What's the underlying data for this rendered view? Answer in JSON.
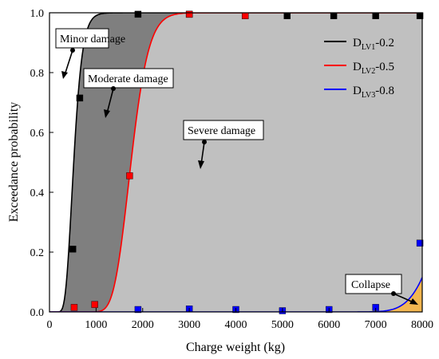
{
  "chart_data": {
    "type": "line",
    "xlabel": "Charge weight (kg)",
    "ylabel": "Exceedance probability",
    "xlim": [
      0,
      8000
    ],
    "ylim": [
      0,
      1.0
    ],
    "x_ticks": [
      0,
      1000,
      2000,
      3000,
      4000,
      5000,
      6000,
      7000,
      8000
    ],
    "x_tick_labels": [
      "0",
      "1000",
      "2000",
      "3000",
      "4000",
      "5000",
      "6000",
      "7000",
      "8000"
    ],
    "y_ticks": [
      0.0,
      0.2,
      0.4,
      0.6,
      0.8,
      1.0
    ],
    "y_tick_labels": [
      "0.0",
      "0.2",
      "0.4",
      "0.6",
      "0.8",
      "1.0"
    ],
    "legend_position": "top-right",
    "series": [
      {
        "legend_base": "D",
        "legend_sub": "LV1",
        "legend_suffix": "-0.2",
        "color": "#000000",
        "curve": {
          "median": 520,
          "beta": 0.28
        },
        "points": [
          [
            500,
            0.21
          ],
          [
            650,
            0.715
          ],
          [
            1900,
            0.995
          ],
          [
            3000,
            0.995
          ],
          [
            4200,
            0.99
          ],
          [
            5100,
            0.99
          ],
          [
            6100,
            0.99
          ],
          [
            7000,
            0.99
          ],
          [
            7950,
            0.99
          ]
        ]
      },
      {
        "legend_base": "D",
        "legend_sub": "LV2",
        "legend_suffix": "-0.5",
        "color": "#ff0000",
        "curve": {
          "median": 1750,
          "beta": 0.17
        },
        "points": [
          [
            530,
            0.015
          ],
          [
            970,
            0.025
          ],
          [
            1720,
            0.455
          ],
          [
            3000,
            0.995
          ],
          [
            4200,
            0.99
          ]
        ]
      },
      {
        "legend_base": "D",
        "legend_sub": "LV3",
        "legend_suffix": "-0.8",
        "color": "#0000ff",
        "curve": {
          "median": 8700,
          "beta": 0.07
        },
        "points": [
          [
            1900,
            0.008
          ],
          [
            3000,
            0.01
          ],
          [
            4000,
            0.008
          ],
          [
            5000,
            0.004
          ],
          [
            6000,
            0.008
          ],
          [
            7000,
            0.015
          ],
          [
            7950,
            0.23
          ]
        ]
      }
    ],
    "regions": [
      {
        "label": "Minor damage",
        "color": "#ffffff"
      },
      {
        "label": "Moderate damage",
        "color": "#7f7f7f"
      },
      {
        "label": "Severe damage",
        "color": "#c0c0c0"
      },
      {
        "label": "Collapse",
        "color": "#f5c26b"
      }
    ]
  }
}
